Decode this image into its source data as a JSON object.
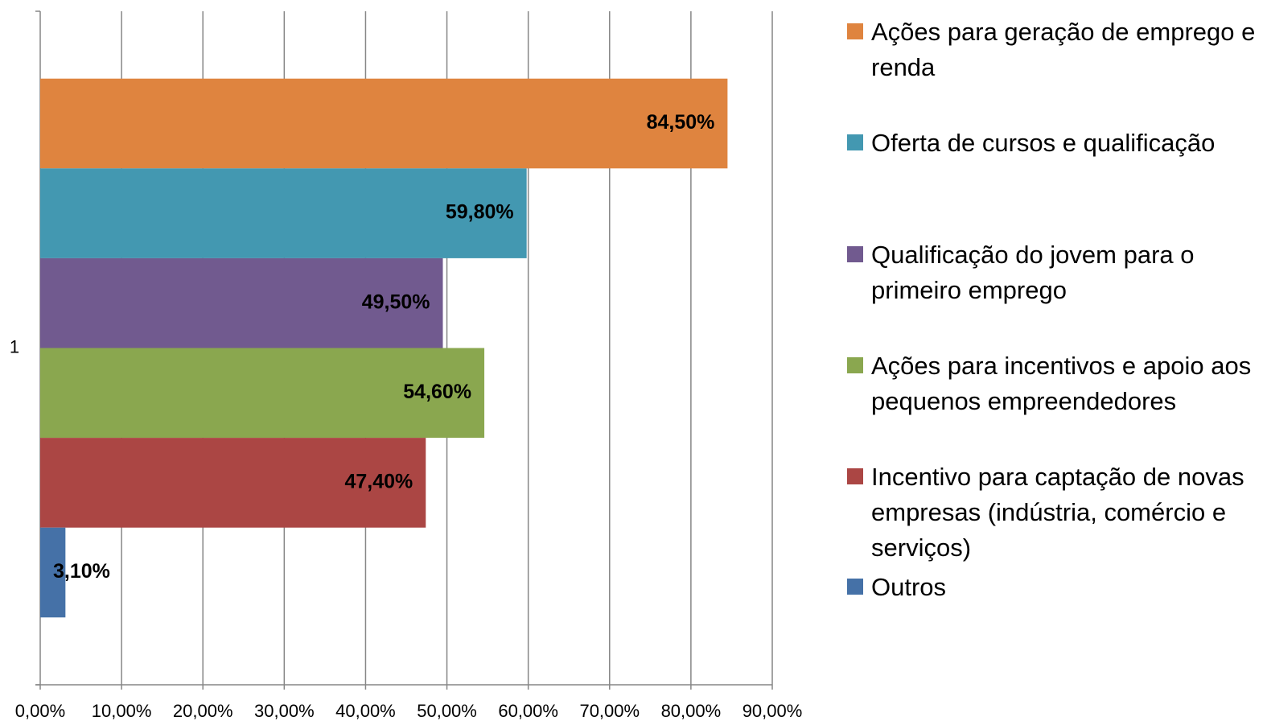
{
  "chart_data": {
    "type": "bar",
    "orientation": "horizontal",
    "categories": [
      "1"
    ],
    "series": [
      {
        "name": "Ações para geração de emprego e renda",
        "color": "#df843f",
        "values": [
          84.5
        ],
        "value_labels": [
          "84,50%"
        ]
      },
      {
        "name": "Oferta de cursos e qualificação",
        "color": "#4398b1",
        "values": [
          59.8
        ],
        "value_labels": [
          "59,80%"
        ]
      },
      {
        "name": "Qualificação do jovem para o primeiro emprego",
        "color": "#715a8f",
        "values": [
          49.5
        ],
        "value_labels": [
          "49,50%"
        ]
      },
      {
        "name": "Ações para incentivos e apoio aos pequenos empreendedores",
        "color": "#8aa74f",
        "values": [
          54.6
        ],
        "value_labels": [
          "54,60%"
        ]
      },
      {
        "name": "Incentivo para captação de novas empresas (indústria, comércio e serviços)",
        "color": "#ab4644",
        "values": [
          47.4
        ],
        "value_labels": [
          "47,40%"
        ]
      },
      {
        "name": "Outros",
        "color": "#4571a7",
        "values": [
          3.1
        ],
        "value_labels": [
          "3,10%"
        ]
      }
    ],
    "xlim": [
      0,
      90
    ],
    "xticks": [
      {
        "value": 0,
        "label": "0,00%"
      },
      {
        "value": 10,
        "label": "10,00%"
      },
      {
        "value": 20,
        "label": "20,00%"
      },
      {
        "value": 30,
        "label": "30,00%"
      },
      {
        "value": 40,
        "label": "40,00%"
      },
      {
        "value": 50,
        "label": "50,00%"
      },
      {
        "value": 60,
        "label": "60,00%"
      },
      {
        "value": 70,
        "label": "70,00%"
      },
      {
        "value": 80,
        "label": "80,00%"
      },
      {
        "value": 90,
        "label": "90,00%"
      }
    ],
    "grid": true,
    "legend": "right"
  }
}
